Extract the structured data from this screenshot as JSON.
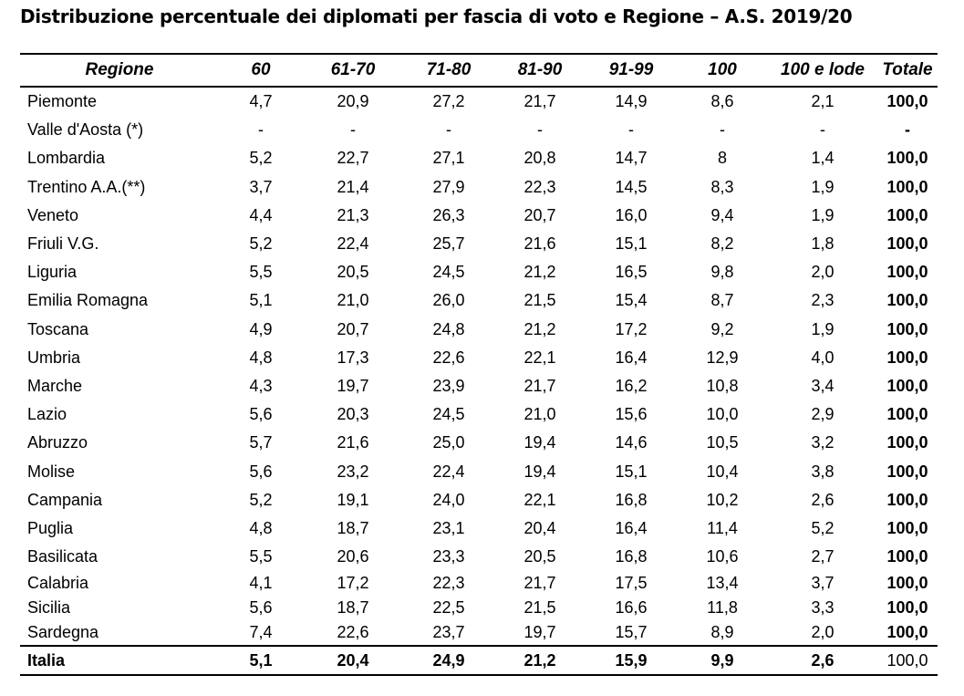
{
  "title": "Distribuzione percentuale dei diplomati per fascia di voto e Regione – A.S. 2019/20",
  "columns": [
    "Regione",
    "60",
    "61-70",
    "71-80",
    "81-90",
    "91-99",
    "100",
    "100 e lode",
    "Totale"
  ],
  "rows": [
    [
      "Piemonte",
      "4,7",
      "20,9",
      "27,2",
      "21,7",
      "14,9",
      "8,6",
      "2,1",
      "100,0"
    ],
    [
      "Valle d'Aosta (*)",
      "-",
      "-",
      "-",
      "-",
      "-",
      "-",
      "-",
      "-"
    ],
    [
      "Lombardia",
      "5,2",
      "22,7",
      "27,1",
      "20,8",
      "14,7",
      "8",
      "1,4",
      "100,0"
    ],
    [
      "Trentino A.A.(**)",
      "3,7",
      "21,4",
      "27,9",
      "22,3",
      "14,5",
      "8,3",
      "1,9",
      "100,0"
    ],
    [
      "Veneto",
      "4,4",
      "21,3",
      "26,3",
      "20,7",
      "16,0",
      "9,4",
      "1,9",
      "100,0"
    ],
    [
      "Friuli V.G.",
      "5,2",
      "22,4",
      "25,7",
      "21,6",
      "15,1",
      "8,2",
      "1,8",
      "100,0"
    ],
    [
      "Liguria",
      "5,5",
      "20,5",
      "24,5",
      "21,2",
      "16,5",
      "9,8",
      "2,0",
      "100,0"
    ],
    [
      "Emilia Romagna",
      "5,1",
      "21,0",
      "26,0",
      "21,5",
      "15,4",
      "8,7",
      "2,3",
      "100,0"
    ],
    [
      "Toscana",
      "4,9",
      "20,7",
      "24,8",
      "21,2",
      "17,2",
      "9,2",
      "1,9",
      "100,0"
    ],
    [
      "Umbria",
      "4,8",
      "17,3",
      "22,6",
      "22,1",
      "16,4",
      "12,9",
      "4,0",
      "100,0"
    ],
    [
      "Marche",
      "4,3",
      "19,7",
      "23,9",
      "21,7",
      "16,2",
      "10,8",
      "3,4",
      "100,0"
    ],
    [
      "Lazio",
      "5,6",
      "20,3",
      "24,5",
      "21,0",
      "15,6",
      "10,0",
      "2,9",
      "100,0"
    ],
    [
      "Abruzzo",
      "5,7",
      "21,6",
      "25,0",
      "19,4",
      "14,6",
      "10,5",
      "3,2",
      "100,0"
    ],
    [
      "Molise",
      "5,6",
      "23,2",
      "22,4",
      "19,4",
      "15,1",
      "10,4",
      "3,8",
      "100,0"
    ],
    [
      "Campania",
      "5,2",
      "19,1",
      "24,0",
      "22,1",
      "16,8",
      "10,2",
      "2,6",
      "100,0"
    ],
    [
      "Puglia",
      "4,8",
      "18,7",
      "23,1",
      "20,4",
      "16,4",
      "11,4",
      "5,2",
      "100,0"
    ],
    [
      "Basilicata",
      "5,5",
      "20,6",
      "23,3",
      "20,5",
      "16,8",
      "10,6",
      "2,7",
      "100,0"
    ],
    [
      "Calabria",
      "4,1",
      "17,2",
      "22,3",
      "21,7",
      "17,5",
      "13,4",
      "3,7",
      "100,0"
    ],
    [
      "Sicilia",
      "5,6",
      "18,7",
      "22,5",
      "21,5",
      "16,6",
      "11,8",
      "3,3",
      "100,0"
    ],
    [
      "Sardegna",
      "7,4",
      "22,6",
      "23,7",
      "19,7",
      "15,7",
      "8,9",
      "2,0",
      "100,0"
    ]
  ],
  "total_row": [
    "Italia",
    "5,1",
    "20,4",
    "24,9",
    "21,2",
    "15,9",
    "9,9",
    "2,6",
    "100,0"
  ]
}
